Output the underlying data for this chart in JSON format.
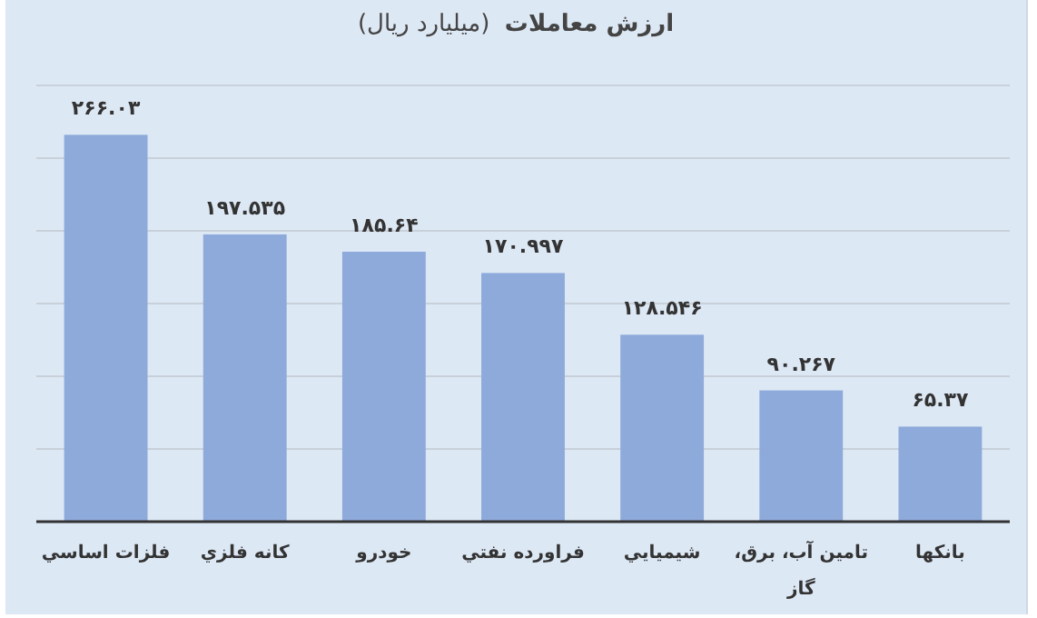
{
  "chart_data": {
    "type": "bar",
    "title": "ارزش معاملات",
    "subtitle": "(میلیارد ریال)",
    "categories": [
      "فلزات اساسي",
      "کانه فلزي",
      "خودرو",
      "فراورده نفتي",
      "شيميايي",
      "تامين آب، برق، گاز",
      "بانکها"
    ],
    "values": [
      266.03,
      197.535,
      185.64,
      170.997,
      128.546,
      90.267,
      65.37
    ],
    "value_labels": [
      "۲۶۶.۰۳",
      "۱۹۷.۵۳۵",
      "۱۸۵.۶۴",
      "۱۷۰.۹۹۷",
      "۱۲۸.۵۴۶",
      "۹۰.۲۶۷",
      "۶۵.۳۷"
    ],
    "color": "#8eaadb",
    "ylim": [
      0,
      300
    ],
    "yticks": [
      {
        "value": 0,
        "label": null
      },
      {
        "value": 50,
        "label": null
      },
      {
        "value": 100,
        "label": null
      },
      {
        "value": 150,
        "label": null
      },
      {
        "value": 200,
        "label": null
      },
      {
        "value": 250,
        "label": null
      },
      {
        "value": 300,
        "label": null
      }
    ],
    "grid": "y",
    "tick_labels": "x"
  }
}
